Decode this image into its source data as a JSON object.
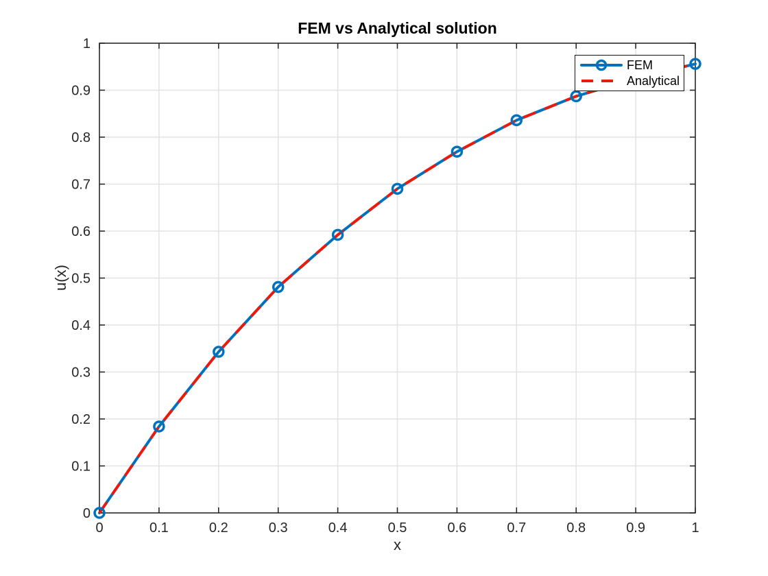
{
  "figure": {
    "background": "#ffffff"
  },
  "chart_data": {
    "type": "line",
    "title": "FEM vs Analytical solution",
    "xlabel": "x",
    "ylabel": "u(x)",
    "xlim": [
      0,
      1
    ],
    "ylim": [
      0,
      1
    ],
    "xticks": [
      0,
      0.1,
      0.2,
      0.3,
      0.4,
      0.5,
      0.6,
      0.7,
      0.8,
      0.9,
      1
    ],
    "xtick_labels": [
      "0",
      "0.1",
      "0.2",
      "0.3",
      "0.4",
      "0.5",
      "0.6",
      "0.7",
      "0.8",
      "0.9",
      "1"
    ],
    "yticks": [
      0,
      0.1,
      0.2,
      0.3,
      0.4,
      0.5,
      0.6,
      0.7,
      0.8,
      0.9,
      1
    ],
    "ytick_labels": [
      "0",
      "0.1",
      "0.2",
      "0.3",
      "0.4",
      "0.5",
      "0.6",
      "0.7",
      "0.8",
      "0.9",
      "1"
    ],
    "grid": true,
    "box": true,
    "legend_position": "northeast",
    "x": [
      0,
      0.1,
      0.2,
      0.3,
      0.4,
      0.5,
      0.6,
      0.7,
      0.8,
      0.9,
      1.0
    ],
    "series": [
      {
        "name": "FEM",
        "color": "#0072BD",
        "linestyle": "solid",
        "line_width": 4,
        "marker": "circle-open",
        "values": [
          0,
          0.184,
          0.343,
          0.481,
          0.592,
          0.69,
          0.769,
          0.836,
          0.887,
          0.925,
          0.956
        ]
      },
      {
        "name": "Analytical",
        "color": "#EB1A0D",
        "linestyle": "dashed",
        "line_width": 4,
        "marker": "none",
        "values": [
          0,
          0.184,
          0.343,
          0.481,
          0.592,
          0.69,
          0.769,
          0.836,
          0.887,
          0.925,
          0.956
        ]
      }
    ]
  },
  "colors": {
    "axis": "#1f1f1f",
    "grid": "#e2e2e2",
    "tick_label": "#262626",
    "background": "#ffffff"
  }
}
